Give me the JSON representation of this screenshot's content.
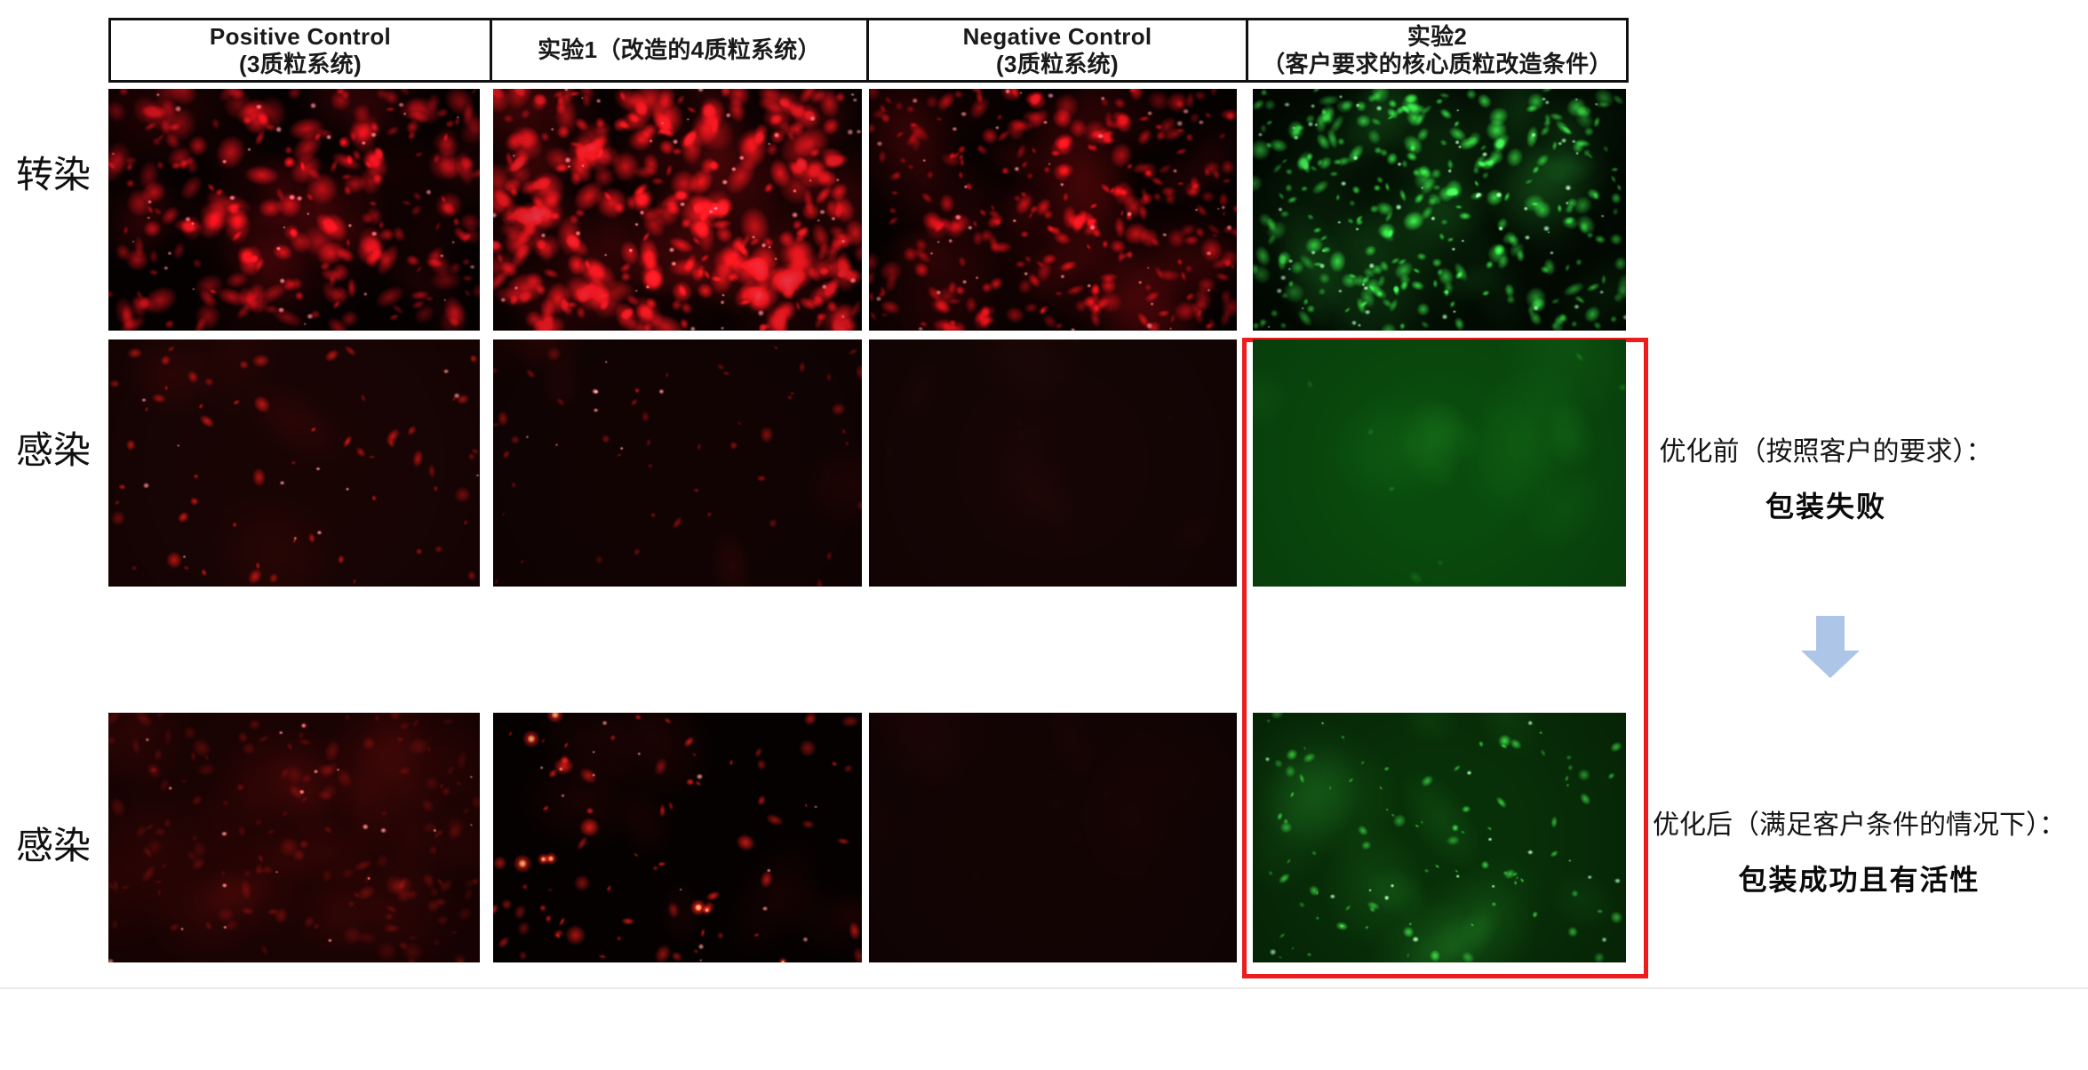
{
  "header": {
    "cells": [
      {
        "id": "positive-control",
        "line1": "Positive Control",
        "line2": "(3质粒系统)"
      },
      {
        "id": "experiment-1",
        "line1": "实验1（改造的4质粒系统）",
        "line2": ""
      },
      {
        "id": "negative-control",
        "line1": "Negative Control",
        "line2": "(3质粒系统)"
      },
      {
        "id": "experiment-2",
        "line1": "实验2",
        "line2": "（客户要求的核心质粒改造条件）"
      }
    ]
  },
  "row_labels": [
    {
      "label": "转染"
    },
    {
      "label": "感染"
    },
    {
      "label": "感染"
    }
  ],
  "annotations": {
    "before": {
      "line": "优化前（按照客户的要求）：",
      "result": "包装失败"
    },
    "after": {
      "line": "优化后（满足客户条件的情况下）：",
      "result": "包装成功且有活性"
    }
  },
  "colors": {
    "highlight_box": "#ee1c1c",
    "arrow": "#adc6e8",
    "red_fluorescence": "#e01420",
    "green_fluorescence": "#2ed04a"
  },
  "panels": [
    {
      "name": "micrograph-r1c1",
      "row": 0,
      "col": 0,
      "seed": 11,
      "bg": "#070101",
      "cell": [
        225,
        18,
        28
      ],
      "clouds": 30,
      "count": 240,
      "rmin": 5,
      "rmax": 21,
      "alpha": 0.8,
      "cores": 40,
      "hot": 0,
      "vig": 0.45
    },
    {
      "name": "micrograph-r1c2",
      "row": 0,
      "col": 1,
      "seed": 22,
      "bg": "#0a0101",
      "cell": [
        240,
        22,
        30
      ],
      "clouds": 45,
      "count": 330,
      "rmin": 6,
      "rmax": 24,
      "alpha": 0.85,
      "cores": 60,
      "hot": 0,
      "vig": 0.3
    },
    {
      "name": "micrograph-r1c3",
      "row": 0,
      "col": 2,
      "seed": 33,
      "bg": "#080101",
      "cell": [
        230,
        18,
        26
      ],
      "clouds": 35,
      "count": 290,
      "rmin": 4,
      "rmax": 15,
      "alpha": 0.8,
      "cores": 50,
      "hot": 0,
      "vig": 0.4
    },
    {
      "name": "micrograph-r1c4",
      "row": 0,
      "col": 3,
      "seed": 44,
      "bg": "#020b02",
      "cell": [
        58,
        225,
        72
      ],
      "clouds": 30,
      "count": 300,
      "rmin": 4,
      "rmax": 13,
      "alpha": 0.85,
      "cores": 70,
      "hot": 0,
      "vig": 0.45
    },
    {
      "name": "micrograph-r2c1",
      "row": 1,
      "col": 0,
      "seed": 55,
      "bg": "#190404",
      "cell": [
        235,
        25,
        22
      ],
      "clouds": 4,
      "count": 60,
      "rmin": 3,
      "rmax": 11,
      "alpha": 0.8,
      "cores": 12,
      "hot": 0,
      "vig": 0.25
    },
    {
      "name": "micrograph-r2c2",
      "row": 1,
      "col": 1,
      "seed": 66,
      "bg": "#120303",
      "cell": [
        215,
        22,
        20
      ],
      "clouds": 5,
      "count": 48,
      "rmin": 3,
      "rmax": 10,
      "alpha": 0.6,
      "cores": 8,
      "hot": 0,
      "vig": 0.3
    },
    {
      "name": "micrograph-r2c3",
      "row": 1,
      "col": 2,
      "seed": 77,
      "bg": "#150505",
      "cell": [
        70,
        15,
        15
      ],
      "clouds": 6,
      "count": 10,
      "rmin": 4,
      "rmax": 9,
      "alpha": 0.1,
      "cores": 0,
      "hot": 0,
      "vig": 0.2
    },
    {
      "name": "micrograph-r2c4",
      "row": 1,
      "col": 3,
      "seed": 88,
      "bg": "#094a0d",
      "cell": [
        60,
        170,
        60
      ],
      "clouds": 8,
      "count": 7,
      "rmin": 4,
      "rmax": 12,
      "alpha": 0.28,
      "cores": 0,
      "hot": 0,
      "vig": 0.22
    },
    {
      "name": "micrograph-r3c1",
      "row": 2,
      "col": 0,
      "seed": 99,
      "bg": "#1c0303",
      "cell": [
        200,
        25,
        22
      ],
      "clouds": 20,
      "count": 150,
      "rmin": 4,
      "rmax": 13,
      "alpha": 0.33,
      "cores": 20,
      "hot": 0,
      "vig": 0.35
    },
    {
      "name": "micrograph-r3c2",
      "row": 2,
      "col": 1,
      "seed": 111,
      "bg": "#060101",
      "cell": [
        240,
        30,
        25
      ],
      "clouds": 8,
      "count": 70,
      "rmin": 3,
      "rmax": 12,
      "alpha": 0.85,
      "cores": 15,
      "hot": 8,
      "vig": 0.35
    },
    {
      "name": "micrograph-r3c3",
      "row": 2,
      "col": 2,
      "seed": 122,
      "bg": "#130404",
      "cell": [
        60,
        12,
        12
      ],
      "clouds": 6,
      "count": 8,
      "rmin": 4,
      "rmax": 9,
      "alpha": 0.08,
      "cores": 0,
      "hot": 0,
      "vig": 0.2
    },
    {
      "name": "micrograph-r3c4",
      "row": 2,
      "col": 3,
      "seed": 133,
      "bg": "#083008",
      "cell": [
        70,
        225,
        80
      ],
      "clouds": 14,
      "count": 90,
      "rmin": 2,
      "rmax": 8,
      "alpha": 0.8,
      "cores": 18,
      "hot": 0,
      "vig": 0.35
    }
  ]
}
